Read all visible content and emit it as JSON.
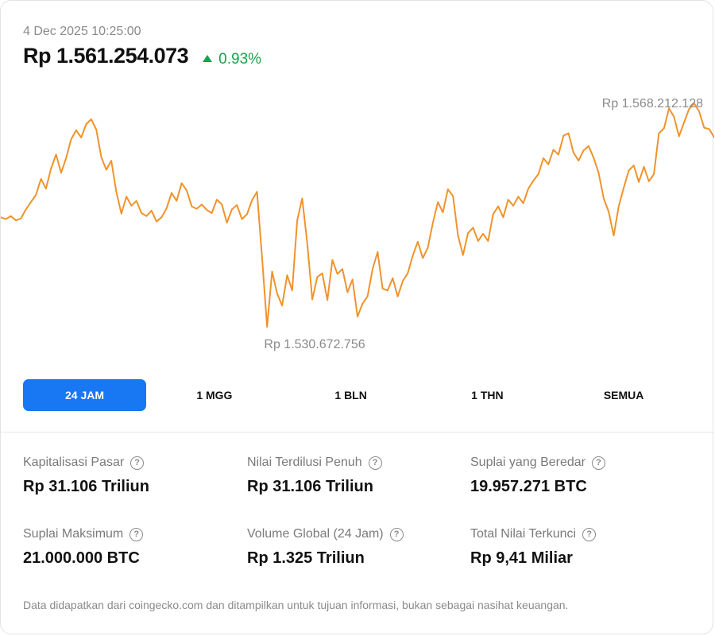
{
  "header": {
    "timestamp": "4 Dec 2025 10:25:00",
    "price": "Rp 1.561.254.073",
    "change": "0.93%",
    "change_color": "#16a34a"
  },
  "chart_data": {
    "type": "line",
    "title": "",
    "xlabel": "",
    "ylabel": "",
    "line_color": "#f0932b",
    "ylim": [
      1525000000,
      1572000000
    ],
    "high_label": "Rp 1.568.212.128",
    "low_label": "Rp 1.530.672.756",
    "series": [
      {
        "values": [
          1549500000,
          1549200000,
          1549700000,
          1549000000,
          1549300000,
          1550800000,
          1552000000,
          1553200000,
          1555800000,
          1554200000,
          1557500000,
          1559800000,
          1556800000,
          1559200000,
          1562300000,
          1563800000,
          1562600000,
          1564800000,
          1565600000,
          1563900000,
          1559400000,
          1557300000,
          1558800000,
          1553600000,
          1550100000,
          1552900000,
          1551400000,
          1552200000,
          1550200000,
          1549700000,
          1550600000,
          1548800000,
          1549500000,
          1551000000,
          1553500000,
          1552200000,
          1555100000,
          1553900000,
          1551300000,
          1550900000,
          1551600000,
          1550700000,
          1550200000,
          1552400000,
          1551600000,
          1548600000,
          1550800000,
          1551500000,
          1549200000,
          1550000000,
          1552300000,
          1553700000,
          1543000000,
          1531500000,
          1540600000,
          1537000000,
          1535000000,
          1540000000,
          1537500000,
          1549000000,
          1552600000,
          1545200000,
          1536000000,
          1539700000,
          1540300000,
          1535900000,
          1542500000,
          1540200000,
          1541000000,
          1537200000,
          1539300000,
          1533200000,
          1535300000,
          1536500000,
          1541000000,
          1543800000,
          1537800000,
          1537500000,
          1539500000,
          1536500000,
          1539000000,
          1540300000,
          1543200000,
          1545500000,
          1542800000,
          1544500000,
          1548600000,
          1552000000,
          1550300000,
          1554100000,
          1553000000,
          1546500000,
          1543300000,
          1546900000,
          1547800000,
          1545600000,
          1546800000,
          1545600000,
          1550000000,
          1551300000,
          1549500000,
          1552400000,
          1551400000,
          1552900000,
          1551800000,
          1554200000,
          1555500000,
          1556600000,
          1559200000,
          1558200000,
          1560600000,
          1559800000,
          1562900000,
          1563300000,
          1560100000,
          1558800000,
          1560500000,
          1561200000,
          1559300000,
          1556800000,
          1552600000,
          1550400000,
          1546500000,
          1551300000,
          1554400000,
          1557200000,
          1558000000,
          1555300000,
          1557800000,
          1555400000,
          1556600000,
          1563300000,
          1564100000,
          1567400000,
          1566000000,
          1562800000,
          1565100000,
          1567300000,
          1568212128,
          1566900000,
          1564200000,
          1564000000,
          1562600000
        ]
      }
    ]
  },
  "tabs": [
    {
      "label": "24 JAM",
      "active": true
    },
    {
      "label": "1 MGG",
      "active": false
    },
    {
      "label": "1 BLN",
      "active": false
    },
    {
      "label": "1 THN",
      "active": false
    },
    {
      "label": "SEMUA",
      "active": false
    }
  ],
  "stats": [
    {
      "label": "Kapitalisasi Pasar",
      "value": "Rp 31.106 Triliun"
    },
    {
      "label": "Nilai Terdilusi Penuh",
      "value": "Rp 31.106 Triliun"
    },
    {
      "label": "Suplai yang Beredar",
      "value": "19.957.271 BTC"
    },
    {
      "label": "Suplai Maksimum",
      "value": "21.000.000 BTC"
    },
    {
      "label": "Volume Global (24 Jam)",
      "value": "Rp 1.325 Triliun"
    },
    {
      "label": "Total Nilai Terkunci",
      "value": "Rp 9,41 Miliar"
    }
  ],
  "help_icon": "?",
  "footer": "Data didapatkan dari coingecko.com dan ditampilkan untuk tujuan informasi, bukan sebagai nasihat keuangan."
}
